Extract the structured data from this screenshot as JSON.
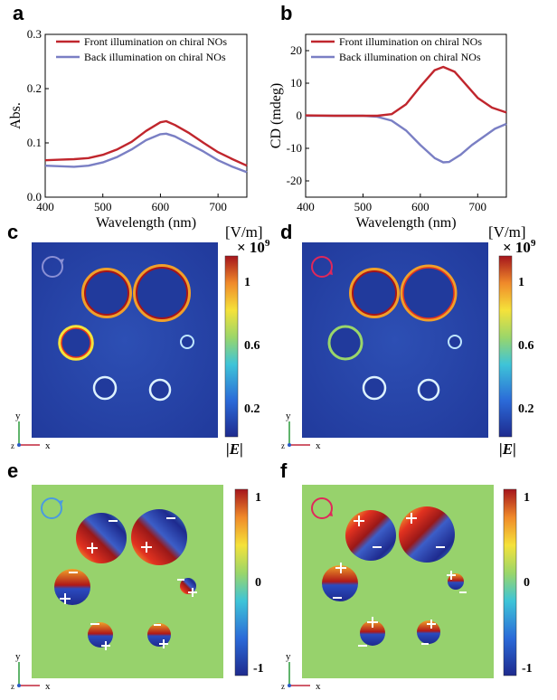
{
  "panels": {
    "a": "a",
    "b": "b",
    "c": "c",
    "d": "d",
    "e": "e",
    "f": "f"
  },
  "colors": {
    "front": "#c0262d",
    "back": "#7a7fc4"
  },
  "chart_data": [
    {
      "type": "line",
      "panel": "a",
      "xlabel": "Wavelength (nm)",
      "ylabel": "Abs.",
      "xlim": [
        400,
        750
      ],
      "ylim": [
        0.0,
        0.3
      ],
      "xticks": [
        "400",
        "500",
        "600",
        "700"
      ],
      "yticks": [
        "0.0",
        "0.1",
        "0.2",
        "0.3"
      ],
      "legend": "top-left",
      "series": [
        {
          "name": "Front illumination on chiral NOs",
          "x": [
            400,
            425,
            450,
            475,
            500,
            525,
            550,
            575,
            600,
            610,
            625,
            650,
            675,
            700,
            725,
            750
          ],
          "y": [
            0.068,
            0.069,
            0.07,
            0.072,
            0.078,
            0.088,
            0.102,
            0.122,
            0.138,
            0.14,
            0.133,
            0.118,
            0.1,
            0.083,
            0.07,
            0.058
          ]
        },
        {
          "name": "Back illumination on chiral NOs",
          "x": [
            400,
            425,
            450,
            475,
            500,
            525,
            550,
            575,
            600,
            610,
            625,
            650,
            675,
            700,
            725,
            750
          ],
          "y": [
            0.058,
            0.057,
            0.056,
            0.058,
            0.064,
            0.074,
            0.088,
            0.105,
            0.116,
            0.117,
            0.112,
            0.098,
            0.084,
            0.068,
            0.056,
            0.046
          ]
        }
      ]
    },
    {
      "type": "line",
      "panel": "b",
      "xlabel": "Wavelength (nm)",
      "ylabel": "CD (mdeg)",
      "xlim": [
        400,
        750
      ],
      "ylim": [
        -25,
        25
      ],
      "xticks": [
        "400",
        "500",
        "600",
        "700"
      ],
      "yticks": [
        "-20",
        "-10",
        "0",
        "10",
        "20"
      ],
      "legend": "top-right",
      "series": [
        {
          "name": "Front illumination on chiral NOs",
          "x": [
            400,
            450,
            500,
            525,
            550,
            575,
            600,
            625,
            640,
            660,
            680,
            700,
            725,
            750
          ],
          "y": [
            0.1,
            0.0,
            0.0,
            0.0,
            0.5,
            3.5,
            9.0,
            14.0,
            15.0,
            13.5,
            9.5,
            5.5,
            2.5,
            1.0
          ]
        },
        {
          "name": "Back illumination on chiral NOs",
          "x": [
            400,
            450,
            500,
            525,
            550,
            575,
            600,
            625,
            640,
            650,
            670,
            690,
            710,
            730,
            750
          ],
          "y": [
            0.0,
            0.0,
            0.0,
            -0.3,
            -1.5,
            -4.5,
            -9.0,
            -13.0,
            -14.3,
            -14.2,
            -12.0,
            -9.0,
            -6.5,
            -4.0,
            -2.5
          ]
        }
      ]
    }
  ],
  "field_maps": {
    "c": {
      "unit": "[V/m]",
      "scale": "× 10",
      "scale_exp": "9",
      "quantity": "|E|",
      "ticks": [
        "1",
        "0.6",
        "0.2"
      ]
    },
    "d": {
      "unit": "[V/m]",
      "scale": "× 10",
      "scale_exp": "9",
      "quantity": "|E|",
      "ticks": [
        "1",
        "0.6",
        "0.2"
      ]
    },
    "e": {
      "ticks": [
        "1",
        "0",
        "-1"
      ]
    },
    "f": {
      "ticks": [
        "1",
        "0",
        "-1"
      ]
    },
    "axes": {
      "x": "x",
      "y": "y",
      "z": "z"
    }
  }
}
